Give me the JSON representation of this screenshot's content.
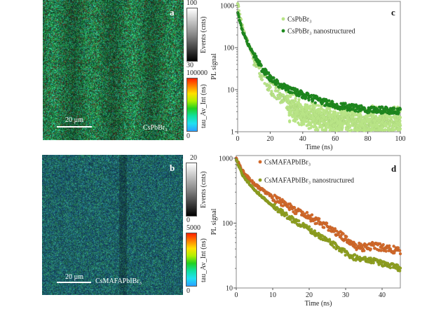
{
  "panels": {
    "a": {
      "letter": "a",
      "scale_label": "20 µm",
      "sample_label": "CsPbBr₃",
      "events_colorbar": {
        "title": "Events (cnts)",
        "max": "100",
        "min": "30"
      },
      "lifetime_colorbar": {
        "title": "tau_Av_Int (ns)",
        "max": "100000",
        "min": "0"
      },
      "dominant_color": "#1f8a3a"
    },
    "b": {
      "letter": "b",
      "scale_label": "20 µm",
      "sample_label": "CsMAFAPbIBr₃",
      "events_colorbar": {
        "title": "Events (cnts)",
        "max": "20",
        "min": "0"
      },
      "lifetime_colorbar": {
        "title": "tau_Av_Int (ns)",
        "max": "5000",
        "min": "0"
      },
      "dominant_color": "#1f5f6a"
    }
  },
  "chart_data": [
    {
      "panel": "c",
      "letter": "c",
      "type": "scatter",
      "xlabel": "Time (ns)",
      "ylabel": "PL signal",
      "xlim": [
        0,
        100
      ],
      "ylim": [
        1,
        1260
      ],
      "yscale": "log",
      "xticks": [
        "0",
        "20",
        "40",
        "60",
        "80",
        "100"
      ],
      "xtick_values": [
        0,
        20,
        40,
        60,
        80,
        100
      ],
      "yticks": [
        "1",
        "10",
        "100",
        "1000"
      ],
      "ytick_values": [
        1,
        10,
        100,
        1000
      ],
      "legend_position": "top-center",
      "series": [
        {
          "name": "CsPbBr₃",
          "color": "#b8e486",
          "x": [
            0,
            1,
            2,
            3,
            5,
            7,
            10,
            13,
            16,
            20,
            25,
            30,
            35,
            40,
            50,
            60,
            70,
            80,
            90,
            100
          ],
          "y": [
            1100,
            700,
            450,
            300,
            170,
            105,
            55,
            32,
            20,
            12,
            7.5,
            5,
            3.6,
            2.8,
            2.2,
            1.9,
            1.8,
            1.7,
            1.6,
            1.6
          ],
          "spread": 0.25
        },
        {
          "name": "CsPbBr₃ nanostructured",
          "color": "#1f8a1f",
          "x": [
            0,
            1,
            2,
            3,
            5,
            7,
            10,
            13,
            16,
            20,
            25,
            30,
            35,
            40,
            50,
            60,
            70,
            80,
            90,
            100
          ],
          "y": [
            700,
            480,
            340,
            250,
            160,
            110,
            70,
            42,
            28,
            19,
            14,
            11,
            9,
            7.5,
            5.5,
            4.3,
            3.7,
            3.4,
            3.3,
            3.2
          ],
          "spread": 0.12
        }
      ]
    },
    {
      "panel": "d",
      "letter": "d",
      "type": "scatter",
      "xlabel": "Time (ns)",
      "ylabel": "PL signal",
      "xlim": [
        0,
        45
      ],
      "ylim": [
        10,
        1100
      ],
      "yscale": "log",
      "xticks": [
        "0",
        "10",
        "20",
        "30",
        "40"
      ],
      "xtick_values": [
        0,
        10,
        20,
        30,
        40
      ],
      "yticks": [
        "10",
        "100",
        "1000"
      ],
      "ytick_values": [
        10,
        100,
        1000
      ],
      "legend_position": "top-left",
      "series": [
        {
          "name": "CsMAFAPbIBr₃",
          "color": "#d2692a",
          "x": [
            0,
            1,
            2,
            4,
            6,
            8,
            10,
            13,
            16,
            20,
            24,
            28,
            30,
            32,
            35,
            38,
            41,
            45
          ],
          "y": [
            1000,
            750,
            600,
            450,
            360,
            300,
            250,
            200,
            160,
            125,
            95,
            70,
            58,
            45,
            42,
            45,
            40,
            38
          ],
          "spread": 0.08
        },
        {
          "name": "CsMAFAPbIBr₃ nanostructured",
          "color": "#8fa020",
          "x": [
            0,
            1,
            2,
            4,
            6,
            8,
            10,
            13,
            16,
            20,
            24,
            28,
            30,
            32,
            35,
            38,
            41,
            45
          ],
          "y": [
            950,
            680,
            520,
            380,
            290,
            230,
            185,
            140,
            108,
            80,
            58,
            42,
            35,
            30,
            28,
            26,
            23,
            20
          ],
          "spread": 0.06
        }
      ]
    }
  ]
}
